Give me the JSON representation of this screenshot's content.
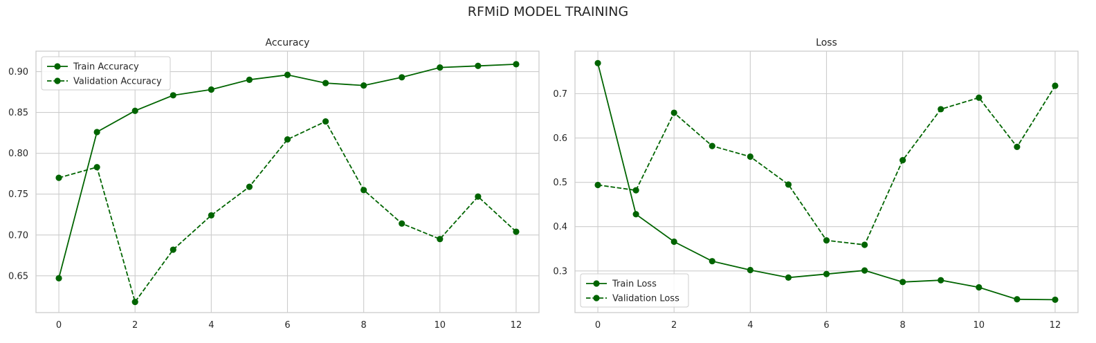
{
  "figure": {
    "title": "RFMiD MODEL TRAINING"
  },
  "colors": {
    "line": "#006400",
    "grid": "#cccccc",
    "frame": "#cccccc",
    "text": "#262626"
  },
  "chart_data": [
    {
      "type": "line",
      "title": "Accuracy",
      "xlabel": "",
      "ylabel": "",
      "x": [
        0,
        1,
        2,
        3,
        4,
        5,
        6,
        7,
        8,
        9,
        10,
        11,
        12
      ],
      "xlim": [
        -0.6,
        12.6
      ],
      "ylim": [
        0.605,
        0.925
      ],
      "xticks": [
        0,
        2,
        4,
        6,
        8,
        10,
        12
      ],
      "yticks": [
        0.65,
        0.7,
        0.75,
        0.8,
        0.85,
        0.9
      ],
      "ytick_labels": [
        "0.65",
        "0.70",
        "0.75",
        "0.80",
        "0.85",
        "0.90"
      ],
      "grid": true,
      "legend": "upper-left",
      "series": [
        {
          "name": "Train Accuracy",
          "style": "solid",
          "values": [
            0.647,
            0.826,
            0.852,
            0.871,
            0.878,
            0.89,
            0.896,
            0.886,
            0.883,
            0.893,
            0.905,
            0.907,
            0.909
          ]
        },
        {
          "name": "Validation Accuracy",
          "style": "dashed",
          "values": [
            0.77,
            0.783,
            0.618,
            0.682,
            0.724,
            0.759,
            0.817,
            0.839,
            0.755,
            0.714,
            0.695,
            0.747,
            0.704
          ]
        }
      ]
    },
    {
      "type": "line",
      "title": "Loss",
      "xlabel": "",
      "ylabel": "",
      "x": [
        0,
        1,
        2,
        3,
        4,
        5,
        6,
        7,
        8,
        9,
        10,
        11,
        12
      ],
      "xlim": [
        -0.6,
        12.6
      ],
      "ylim": [
        0.206,
        0.796
      ],
      "xticks": [
        0,
        2,
        4,
        6,
        8,
        10,
        12
      ],
      "yticks": [
        0.3,
        0.4,
        0.5,
        0.6,
        0.7
      ],
      "ytick_labels": [
        "0.3",
        "0.4",
        "0.5",
        "0.6",
        "0.7"
      ],
      "grid": true,
      "legend": "lower-left",
      "series": [
        {
          "name": "Train Loss",
          "style": "solid",
          "values": [
            0.769,
            0.428,
            0.366,
            0.322,
            0.302,
            0.285,
            0.293,
            0.301,
            0.275,
            0.279,
            0.263,
            0.236,
            0.235
          ]
        },
        {
          "name": "Validation Loss",
          "style": "dashed",
          "values": [
            0.494,
            0.482,
            0.657,
            0.582,
            0.558,
            0.495,
            0.369,
            0.359,
            0.55,
            0.665,
            0.691,
            0.58,
            0.718
          ]
        }
      ]
    }
  ]
}
